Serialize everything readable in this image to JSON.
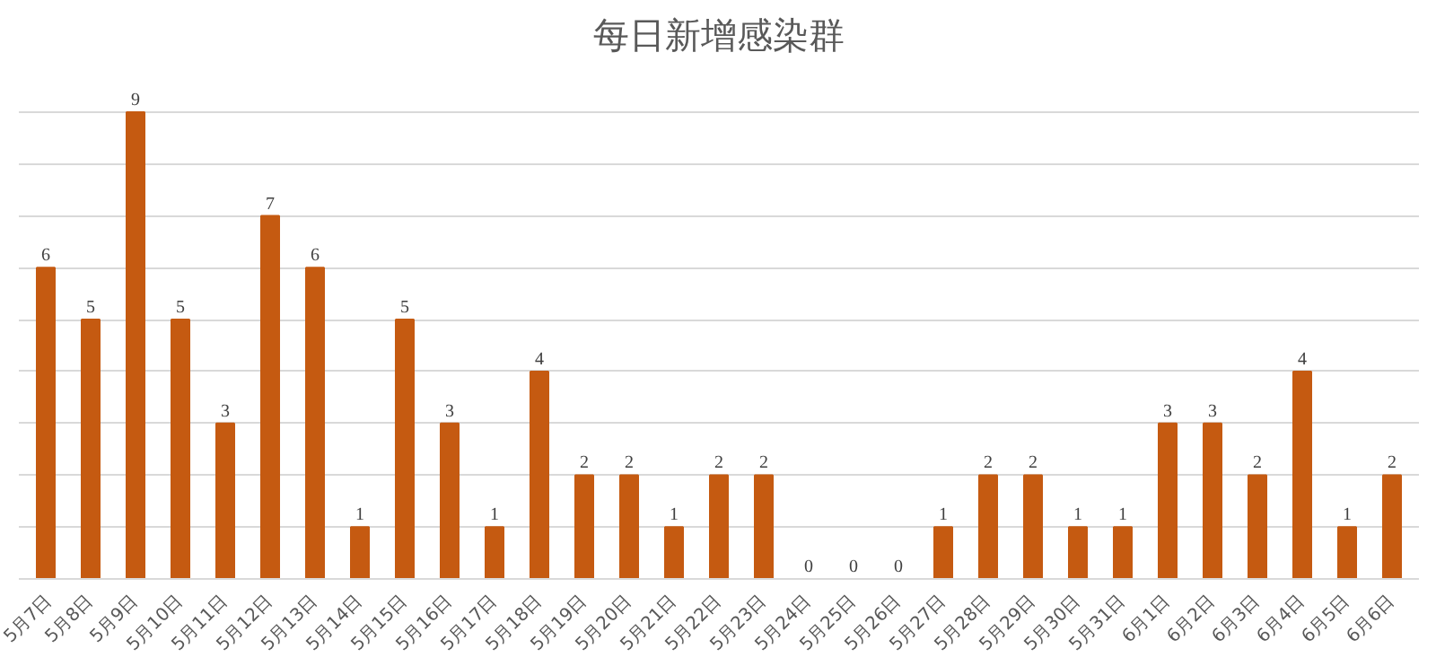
{
  "chart_data": {
    "type": "bar",
    "title": "每日新增感染群",
    "categories": [
      "5月7日",
      "5月8日",
      "5月9日",
      "5月10日",
      "5月11日",
      "5月12日",
      "5月13日",
      "5月14日",
      "5月15日",
      "5月16日",
      "5月17日",
      "5月18日",
      "5月19日",
      "5月20日",
      "5月21日",
      "5月22日",
      "5月23日",
      "5月24日",
      "5月25日",
      "5月26日",
      "5月27日",
      "5月28日",
      "5月29日",
      "5月30日",
      "5月31日",
      "6月1日",
      "6月2日",
      "6月3日",
      "6月4日",
      "6月5日",
      "6月6日"
    ],
    "values": [
      6,
      5,
      9,
      5,
      3,
      7,
      6,
      1,
      5,
      3,
      1,
      4,
      2,
      2,
      1,
      2,
      2,
      0,
      0,
      0,
      1,
      2,
      2,
      1,
      1,
      3,
      3,
      2,
      4,
      1,
      2
    ],
    "color": "#c55a11",
    "data_labels": true,
    "yticks": [
      {
        "value": 0,
        "label": null
      },
      {
        "value": 1,
        "label": null
      },
      {
        "value": 2,
        "label": null
      },
      {
        "value": 3,
        "label": null
      },
      {
        "value": 4,
        "label": null
      },
      {
        "value": 5,
        "label": null
      },
      {
        "value": 6,
        "label": null
      },
      {
        "value": 7,
        "label": null
      },
      {
        "value": 8,
        "label": null
      },
      {
        "value": 9,
        "label": null
      }
    ],
    "grid": "y",
    "tick_labels": "x"
  }
}
